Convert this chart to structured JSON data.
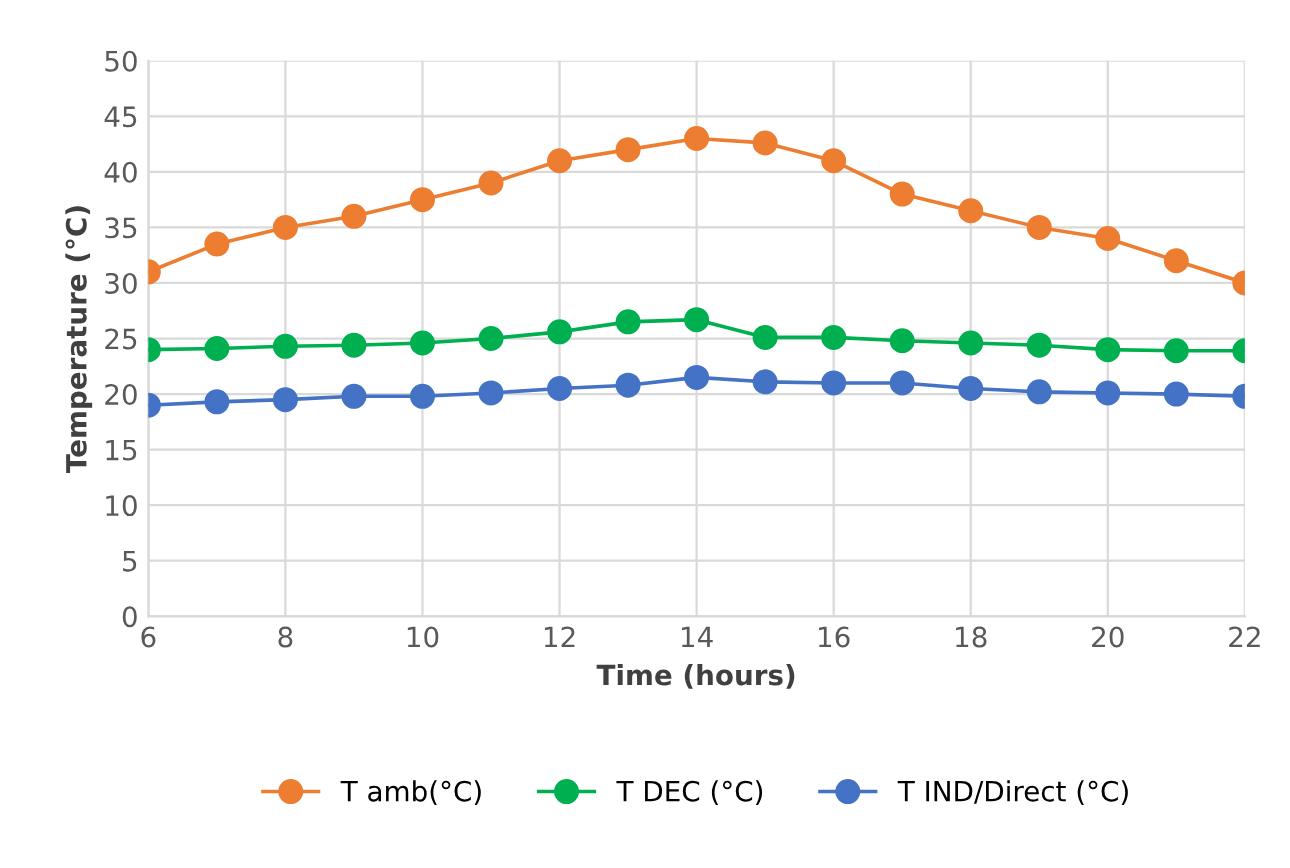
{
  "chart_data": {
    "type": "line",
    "xlabel": "Time (hours)",
    "ylabel": "Temperature (°C)",
    "x": [
      6,
      7,
      8,
      9,
      10,
      11,
      12,
      13,
      14,
      15,
      16,
      17,
      18,
      19,
      20,
      21,
      22
    ],
    "series": [
      {
        "name": "T amb(°C)",
        "color": "#ed7d31",
        "values": [
          31,
          33.5,
          35,
          36,
          37.5,
          39,
          41,
          42,
          43,
          42.6,
          41,
          38,
          36.5,
          35,
          34,
          32,
          30
        ]
      },
      {
        "name": "T DEC (°C)",
        "color": "#00b050",
        "values": [
          24,
          24.1,
          24.3,
          24.4,
          24.6,
          25,
          25.6,
          26.5,
          26.7,
          25.1,
          25.1,
          24.8,
          24.6,
          24.4,
          24,
          23.9,
          23.9
        ]
      },
      {
        "name": "T IND/Direct (°C)",
        "color": "#4472c4",
        "values": [
          19,
          19.3,
          19.5,
          19.8,
          19.8,
          20.1,
          20.5,
          20.8,
          21.5,
          21.1,
          21,
          21,
          20.5,
          20.2,
          20.1,
          20,
          19.8
        ]
      }
    ],
    "xlim": [
      6,
      22
    ],
    "xticks": [
      6,
      8,
      10,
      12,
      14,
      16,
      18,
      20,
      22
    ],
    "ylim": [
      0,
      50
    ],
    "yticks": [
      0,
      5,
      10,
      15,
      20,
      25,
      30,
      35,
      40,
      45,
      50
    ],
    "grid": true,
    "legend": "bottom",
    "marker": "circle",
    "line_style": "solid"
  }
}
